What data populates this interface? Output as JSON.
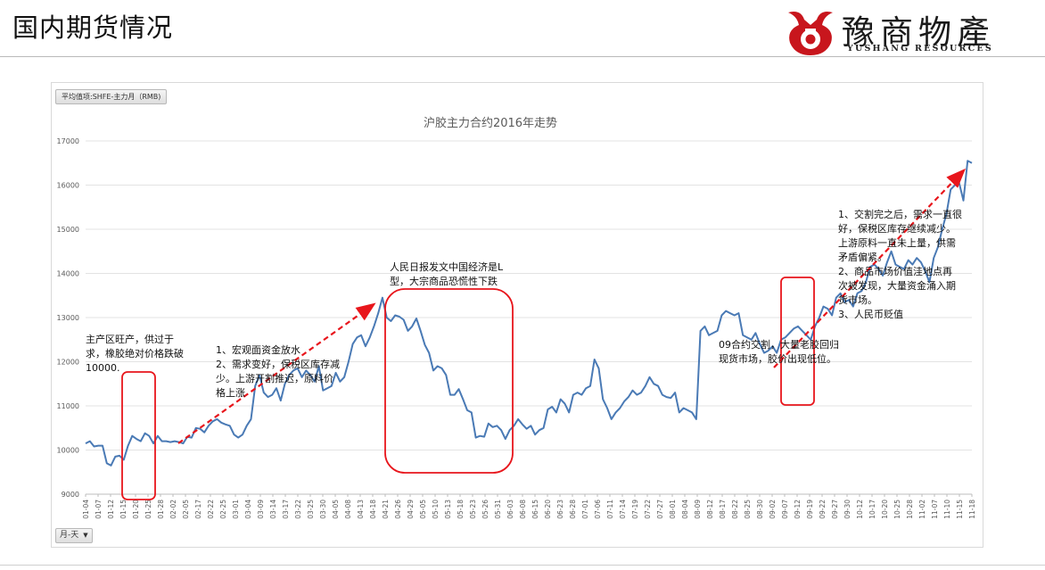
{
  "slide": {
    "title": "国内期货情况",
    "logo_cn": "豫商物產",
    "logo_en": "YUSHANG RESOURCES"
  },
  "controls": {
    "field_button": "平均值项:SHFE-主力月（RMB)",
    "axis_dropdown": "月-天"
  },
  "colors": {
    "line": "#4a7ab5",
    "grid": "#e3e3e3",
    "box": "#e8161c",
    "arrow": "#e8161c",
    "logo_red": "#c8161d"
  },
  "annotations": [
    {
      "id": "a1",
      "text": "主产区旺产，供过于\n求，橡胶绝对价格跌破\n10000."
    },
    {
      "id": "a2",
      "text": "1、宏观面资金放水\n2、需求变好，保税区库存减\n少。上游开割推迟，原料价\n格上涨"
    },
    {
      "id": "a3",
      "text": "人民日报发文中国经济是L\n型，大宗商品恐慌性下跌"
    },
    {
      "id": "a4",
      "text": "09合约交割，大量老胶回归\n现货市场，胶价出现低位。"
    },
    {
      "id": "a5",
      "text": "1、交割完之后，需求一直很\n好，保税区库存继续减少。\n上游原料一直未上量，供需\n矛盾偏紧。\n2、商品市场价值洼地点再\n次被发现，大量资金涌入期\n货市场。\n3、人民币贬值"
    }
  ],
  "chart_data": {
    "type": "line",
    "title": "沪胶主力合约2016年走势",
    "xlabel": "",
    "ylabel": "",
    "ylim": [
      9000,
      17000
    ],
    "yticks": [
      9000,
      10000,
      11000,
      12000,
      13000,
      14000,
      15000,
      16000,
      17000
    ],
    "grid": "horizontal",
    "xticks": [
      "01-04",
      "01-07",
      "01-12",
      "01-15",
      "01-20",
      "01-25",
      "01-28",
      "02-02",
      "02-05",
      "02-17",
      "02-22",
      "02-25",
      "03-01",
      "03-04",
      "03-09",
      "03-14",
      "03-17",
      "03-22",
      "03-25",
      "03-30",
      "04-05",
      "04-08",
      "04-13",
      "04-18",
      "04-21",
      "04-26",
      "04-29",
      "05-05",
      "05-10",
      "05-13",
      "05-18",
      "05-23",
      "05-26",
      "05-31",
      "06-03",
      "06-08",
      "06-15",
      "06-20",
      "06-23",
      "06-28",
      "07-01",
      "07-06",
      "07-11",
      "07-14",
      "07-19",
      "07-22",
      "07-27",
      "08-01",
      "08-04",
      "08-09",
      "08-12",
      "08-17",
      "08-22",
      "08-25",
      "08-30",
      "09-02",
      "09-07",
      "09-12",
      "09-19",
      "09-22",
      "09-27",
      "09-30",
      "10-12",
      "10-17",
      "10-20",
      "10-25",
      "10-28",
      "11-02",
      "11-07",
      "11-10",
      "11-15",
      "11-18"
    ],
    "series": [
      {
        "values": [
          10150,
          10200,
          10080,
          10100,
          10100,
          9700,
          9650,
          9850,
          9870,
          9780,
          10100,
          10320,
          10250,
          10200,
          10380,
          10320,
          10150,
          10320,
          10200,
          10200,
          10180,
          10200,
          10180,
          10150,
          10300,
          10280,
          10500,
          10480,
          10400,
          10550,
          10650,
          10700,
          10620,
          10580,
          10550,
          10350,
          10280,
          10350,
          10550,
          10700,
          11450,
          11700,
          11300,
          11200,
          11250,
          11400,
          11120,
          11500,
          11700,
          11800,
          11850,
          11650,
          11800,
          11700,
          11550,
          11900,
          11350,
          11400,
          11450,
          11750,
          11550,
          11650,
          12000,
          12400,
          12550,
          12600,
          12350,
          12550,
          12800,
          13100,
          13450,
          13000,
          12920,
          13050,
          13020,
          12950,
          12700,
          12800,
          12980,
          12700,
          12380,
          12200,
          11800,
          11900,
          11850,
          11700,
          11250,
          11250,
          11380,
          11150,
          10900,
          10850,
          10280,
          10320,
          10300,
          10600,
          10520,
          10550,
          10450,
          10250,
          10450,
          10550,
          10700,
          10580,
          10480,
          10550,
          10350,
          10450,
          10500,
          10920,
          10980,
          10850,
          11150,
          11050,
          10850,
          11250,
          11300,
          11250,
          11400,
          11450,
          12050,
          11850,
          11150,
          10950,
          10700,
          10850,
          10950,
          11100,
          11200,
          11350,
          11250,
          11300,
          11450,
          11650,
          11500,
          11450,
          11250,
          11200,
          11180,
          11300,
          10850,
          10950,
          10900,
          10850,
          10700,
          12700,
          12800,
          12600,
          12650,
          12700,
          13050,
          13150,
          13100,
          13050,
          13100,
          12600,
          12550,
          12500,
          12650,
          12400,
          12200,
          12250,
          12350,
          12200,
          12500,
          12550,
          12650,
          12750,
          12800,
          12700,
          12600,
          12500,
          12800,
          13000,
          13250,
          13200,
          13050,
          13450,
          13550,
          13350,
          13400,
          13250,
          13550,
          13600,
          13800,
          14150,
          14200,
          14100,
          13950,
          14250,
          14500,
          14200,
          14150,
          14100,
          14300,
          14200,
          14350,
          14250,
          14050,
          13800,
          14350,
          14600,
          15000,
          15350,
          15900,
          16000,
          16050,
          15650,
          16550,
          16500
        ]
      }
    ]
  }
}
